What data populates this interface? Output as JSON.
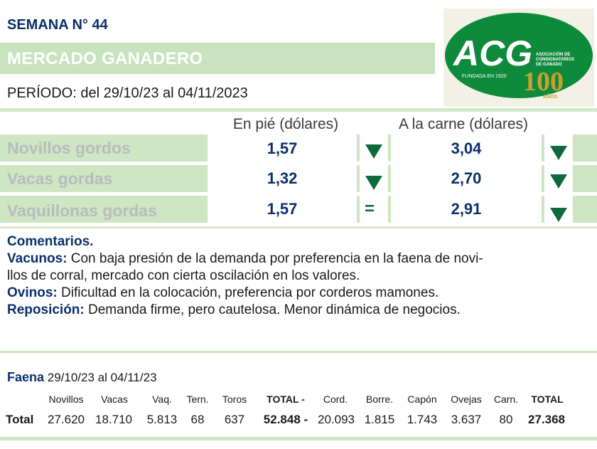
{
  "header": {
    "week": "SEMANA N° 44",
    "market_title": "MERCADO GANADERO",
    "period": "PERÍODO: del  29/10/23  al  04/11/2023"
  },
  "logo": {
    "name": "ACG",
    "subtitle": "ASOCIACIÓN DE CONSIGNATARIOS DE GANADO",
    "founded": "FUNDADA EN 1920",
    "anniversary": "100",
    "anniversary_sub": "AÑOS",
    "colors": {
      "green": "#0e8a3c",
      "gold": "#c9a02e"
    }
  },
  "prices": {
    "col_pie": "En pié (dólares)",
    "col_carne": "A la carne (dólares)",
    "rows": [
      {
        "label": "Novillos gordos",
        "pie": "1,57",
        "pie_trend": "down",
        "carne": "3,04",
        "carne_trend": "down"
      },
      {
        "label": "Vacas gordas",
        "pie": "1,32",
        "pie_trend": "down",
        "carne": "2,70",
        "carne_trend": "down"
      },
      {
        "label": "Vaquillonas gordas",
        "pie": "1,57",
        "pie_trend": "equal",
        "pie_symbol": "=",
        "carne": "2,91",
        "carne_trend": "down"
      }
    ]
  },
  "comments": {
    "title": "Comentarios.",
    "vacunos_label": "Vacunos:",
    "vacunos_text1": " Con baja presión de la demanda por preferencia en la faena de novi-",
    "vacunos_text2": "llos de corral, mercado con cierta oscilación en los valores.",
    "ovinos_label": "Ovinos:",
    "ovinos_text": " Dificultad en la colocación, preferencia por corderos mamones.",
    "reposicion_label": "Reposición:",
    "reposicion_text": " Demanda firme, pero cautelosa. Menor dinámica de negocios."
  },
  "faena": {
    "label": "Faena",
    "period": " 29/10/23 al 04/11/23",
    "headers": [
      "Novillos",
      "Vacas",
      "Vaq.",
      "Tern.",
      "Toros",
      "TOTAL -",
      "Cord.",
      "Borre.",
      "Capón",
      "Ovejas",
      "Carn.",
      "TOTAL"
    ],
    "row_label": "Total",
    "values": [
      "27.620",
      "18.710",
      "5.813",
      "68",
      "637",
      "52.848 -",
      "20.093",
      "1.815",
      "1.743",
      "3.637",
      "80",
      "27.368"
    ]
  }
}
